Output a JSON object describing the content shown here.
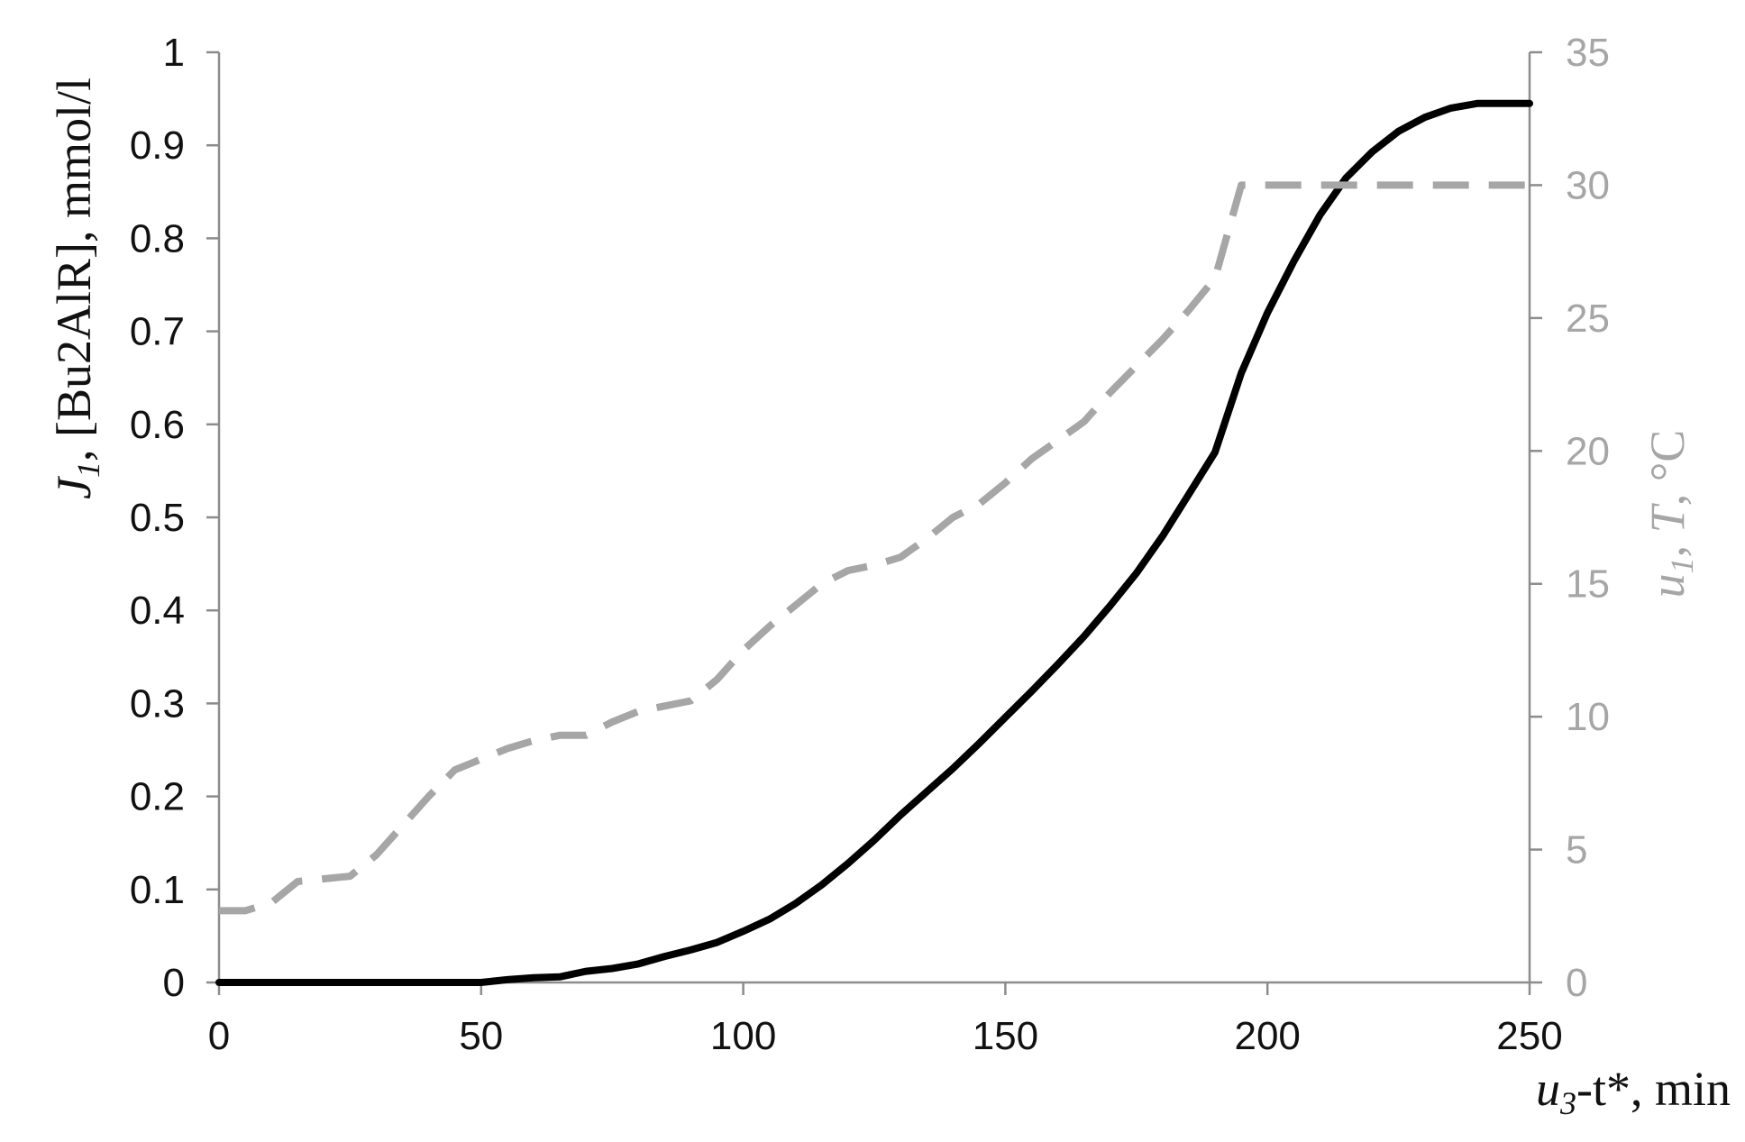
{
  "chart_data": {
    "type": "line",
    "title": "",
    "xlabel": {
      "prefix_italic": "u",
      "sub_italic": "3",
      "rest": "-t*, min",
      "text": "u3-t*, min"
    },
    "ylabel_left": {
      "prefix_italic": "J",
      "sub_italic": "1",
      "rest": ", [Bu2AlR], mmol/l",
      "text": "J1, [Bu2AlR], mmol/l"
    },
    "ylabel_right": {
      "prefix_italic": "u",
      "sub_italic": "1",
      "mid": ", ",
      "t_italic": "T",
      "rest": ", °C",
      "text": "u1, T, °C"
    },
    "xlim": [
      0,
      250
    ],
    "ylim_left": [
      0,
      1
    ],
    "ylim_right": [
      0,
      35
    ],
    "x_ticks": [
      "0",
      "50",
      "100",
      "150",
      "200",
      "250"
    ],
    "y_left_ticks": [
      "0",
      "0.1",
      "0.2",
      "0.3",
      "0.4",
      "0.5",
      "0.6",
      "0.7",
      "0.8",
      "0.9",
      "1"
    ],
    "y_right_ticks": [
      "0",
      "5",
      "10",
      "15",
      "20",
      "25",
      "30",
      "35"
    ],
    "grid": false,
    "legend": "none",
    "series": [
      {
        "axis": "left",
        "color": "#000000",
        "style": "solid",
        "x": [
          0,
          10,
          20,
          30,
          40,
          50,
          55,
          60,
          65,
          70,
          75,
          80,
          85,
          90,
          95,
          100,
          105,
          110,
          115,
          120,
          125,
          130,
          135,
          140,
          145,
          150,
          155,
          160,
          165,
          170,
          175,
          180,
          185,
          190,
          195,
          200,
          205,
          210,
          215,
          220,
          225,
          230,
          235,
          240,
          245,
          250
        ],
        "values": [
          0,
          0,
          0,
          0,
          0,
          0,
          0.003,
          0.005,
          0.006,
          0.012,
          0.015,
          0.02,
          0.028,
          0.035,
          0.043,
          0.055,
          0.068,
          0.085,
          0.105,
          0.128,
          0.153,
          0.18,
          0.205,
          0.23,
          0.257,
          0.285,
          0.313,
          0.342,
          0.372,
          0.405,
          0.44,
          0.48,
          0.525,
          0.57,
          0.655,
          0.72,
          0.775,
          0.825,
          0.865,
          0.893,
          0.915,
          0.93,
          0.94,
          0.945,
          0.945,
          0.945
        ]
      },
      {
        "axis": "right",
        "color": "#a6a6a6",
        "style": "dashed",
        "x": [
          0,
          5,
          10,
          15,
          20,
          25,
          30,
          35,
          40,
          45,
          50,
          55,
          60,
          65,
          70,
          75,
          80,
          85,
          90,
          95,
          100,
          105,
          110,
          115,
          120,
          125,
          130,
          135,
          140,
          145,
          150,
          155,
          160,
          165,
          170,
          175,
          180,
          185,
          190,
          195,
          200,
          205,
          210,
          215,
          220,
          225,
          230,
          235,
          240,
          245,
          250
        ],
        "values": [
          2.7,
          2.7,
          3.0,
          3.8,
          3.9,
          4.0,
          4.8,
          5.9,
          7.0,
          8.0,
          8.4,
          8.8,
          9.1,
          9.3,
          9.3,
          9.8,
          10.2,
          10.4,
          10.6,
          11.4,
          12.5,
          13.4,
          14.2,
          15.0,
          15.5,
          15.7,
          16.0,
          16.7,
          17.5,
          18.0,
          18.8,
          19.7,
          20.4,
          21.1,
          22.2,
          23.2,
          24.2,
          25.3,
          26.5,
          30.0,
          30.0,
          30.0,
          30.0,
          30.0,
          30.0,
          30.0,
          30.0,
          30.0,
          30.0,
          30.0,
          30.0
        ]
      }
    ]
  }
}
